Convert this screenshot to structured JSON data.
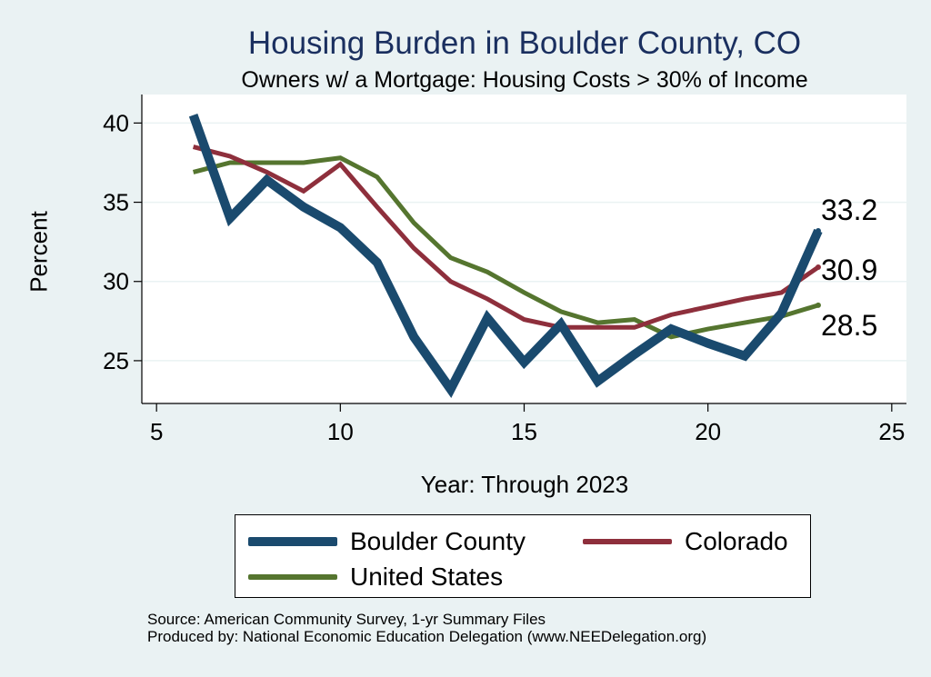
{
  "title": "Housing Burden in Boulder County, CO",
  "subtitle": "Owners w/ a Mortgage: Housing Costs > 30% of Income",
  "source": {
    "line1": "Source: American Community Survey, 1-yr Summary Files",
    "line2": "Produced by: National Economic Education Delegation (www.NEEDelegation.org)"
  },
  "colors": {
    "background": "#eaf2f3",
    "plot_background": "#ffffff",
    "grid": "#eaf2f3",
    "boulder": "#1a4a6e",
    "colorado": "#8e2f3c",
    "united_states": "#55752f"
  },
  "chart_data": {
    "type": "line",
    "title": "Housing Burden in Boulder County, CO",
    "subtitle": "Owners w/ a Mortgage: Housing Costs > 30% of Income",
    "xlabel": "Year: Through 2023",
    "ylabel": "Percent",
    "xlim": [
      4.6,
      25.4
    ],
    "ylim": [
      22.3,
      41.8
    ],
    "xticks": [
      5,
      10,
      15,
      20,
      25
    ],
    "yticks": [
      25,
      30,
      35,
      40
    ],
    "grid": true,
    "legend_position": "bottom",
    "x": [
      6,
      7,
      8,
      9,
      10,
      11,
      12,
      13,
      14,
      15,
      16,
      17,
      18,
      19,
      20,
      21,
      22,
      23
    ],
    "series": [
      {
        "name": "Boulder County",
        "color": "#1a4a6e",
        "width": "thick",
        "values": [
          40.5,
          34.0,
          36.4,
          34.7,
          33.4,
          31.2,
          26.5,
          23.2,
          27.7,
          24.9,
          27.3,
          23.7,
          25.4,
          27.0,
          26.1,
          25.3,
          28.0,
          33.2
        ],
        "end_label": "33.2"
      },
      {
        "name": "Colorado",
        "color": "#8e2f3c",
        "width": "medium",
        "values": [
          38.5,
          37.9,
          36.9,
          35.7,
          37.4,
          34.7,
          32.1,
          30.0,
          28.9,
          27.6,
          27.1,
          27.1,
          27.1,
          27.9,
          28.4,
          28.9,
          29.3,
          30.9
        ],
        "end_label": "30.9"
      },
      {
        "name": "United States",
        "color": "#55752f",
        "width": "medium",
        "values": [
          36.9,
          37.5,
          37.5,
          37.5,
          37.8,
          36.6,
          33.7,
          31.5,
          30.6,
          29.3,
          28.1,
          27.4,
          27.6,
          26.5,
          27.0,
          27.4,
          27.8,
          28.5
        ],
        "end_label": "28.5"
      }
    ]
  }
}
